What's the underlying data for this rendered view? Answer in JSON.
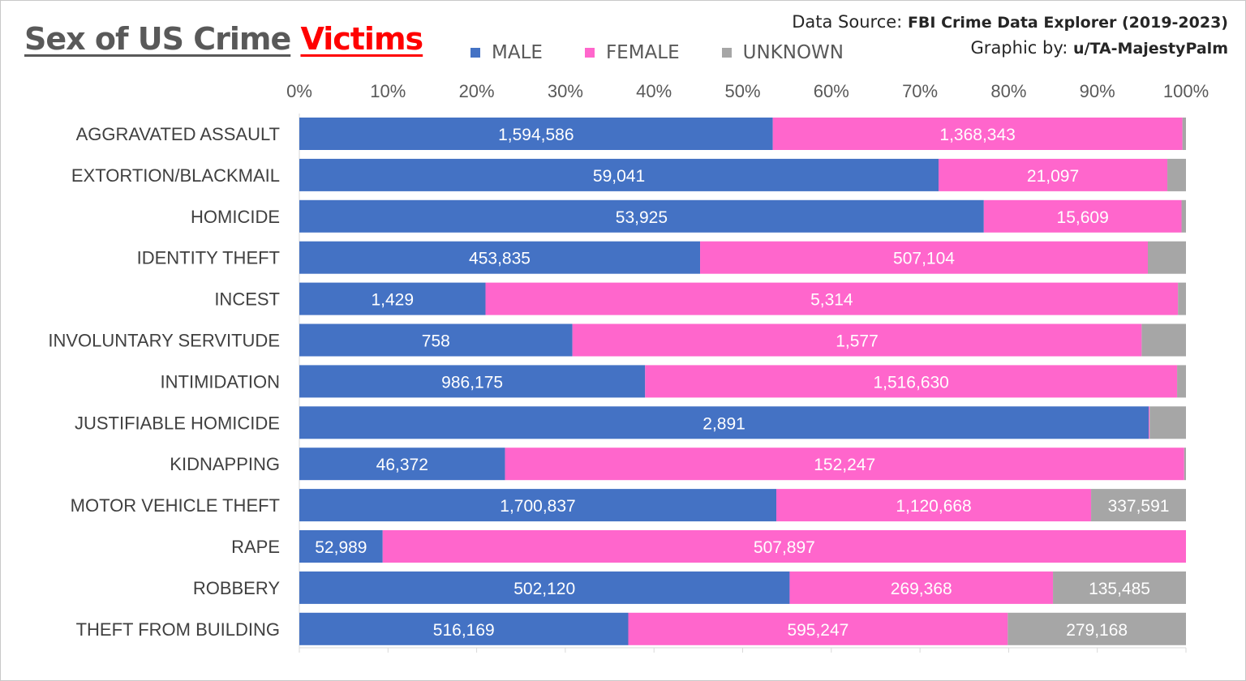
{
  "title_part1": "Sex of US Crime",
  "title_part2": "Victims",
  "source_label": "Data Source:",
  "source_value": "FBI Crime Data Explorer (2019-2023)",
  "credit_label": "Graphic by:",
  "credit_value": "u/TA-MajestyPalm",
  "colors": {
    "male": "#4472c4",
    "female": "#ff66cc",
    "unknown": "#a6a6a6",
    "title_gray": "#595959",
    "title_red": "#ff0000"
  },
  "chart_data": {
    "type": "bar",
    "orientation": "horizontal",
    "stacked": "100%",
    "categories": [
      "AGGRAVATED ASSAULT",
      "EXTORTION/BLACKMAIL",
      "HOMICIDE",
      "IDENTITY THEFT",
      "INCEST",
      "INVOLUNTARY SERVITUDE",
      "INTIMIDATION",
      "JUSTIFIABLE HOMICIDE",
      "KIDNAPPING",
      "MOTOR VEHICLE THEFT",
      "RAPE",
      "ROBBERY",
      "THEFT FROM BUILDING"
    ],
    "series": [
      {
        "name": "MALE",
        "color": "#4472c4",
        "values": [
          1594586,
          59041,
          53925,
          453835,
          1429,
          758,
          986175,
          2891,
          46372,
          1700837,
          52989,
          502120,
          516169
        ],
        "shares_pct": [
          53.4,
          72.1,
          77.2,
          45.2,
          21.0,
          30.8,
          39.0,
          95.8,
          23.2,
          53.8,
          9.4,
          55.3,
          37.1
        ],
        "labels": [
          "1,594,586",
          "59,041",
          "53,925",
          "453,835",
          "1,429",
          "758",
          "986,175",
          "2,891",
          "46,372",
          "1,700,837",
          "52,989",
          "502,120",
          "516,169"
        ]
      },
      {
        "name": "FEMALE",
        "color": "#ff66cc",
        "values": [
          1368343,
          21097,
          15609,
          507104,
          5314,
          1577,
          1516630,
          null,
          152247,
          1120668,
          507897,
          269368,
          595247
        ],
        "shares_pct": [
          46.2,
          25.8,
          22.3,
          50.5,
          78.1,
          64.2,
          60.0,
          0.1,
          76.6,
          35.5,
          90.6,
          29.7,
          42.8
        ],
        "labels": [
          "1,368,343",
          "21,097",
          "15,609",
          "507,104",
          "5,314",
          "1,577",
          "1,516,630",
          "",
          "152,247",
          "1,120,668",
          "507,897",
          "269,368",
          "595,247"
        ]
      },
      {
        "name": "UNKNOWN",
        "color": "#a6a6a6",
        "values": [
          null,
          null,
          null,
          null,
          null,
          null,
          null,
          null,
          null,
          337591,
          null,
          135485,
          279168
        ],
        "shares_pct": [
          0.4,
          2.1,
          0.5,
          4.3,
          0.9,
          5.0,
          1.0,
          4.1,
          0.2,
          10.7,
          0.0,
          15.0,
          20.1
        ],
        "labels": [
          "",
          "",
          "",
          "",
          "",
          "",
          "",
          "",
          "",
          "337,591",
          "",
          "135,485",
          "279,168"
        ]
      }
    ],
    "xaxis": {
      "range": [
        0,
        100
      ],
      "ticks": [
        "0%",
        "10%",
        "20%",
        "30%",
        "40%",
        "50%",
        "60%",
        "70%",
        "80%",
        "90%",
        "100%"
      ],
      "position": "top"
    },
    "legend": {
      "position": "top"
    },
    "grid": false
  }
}
